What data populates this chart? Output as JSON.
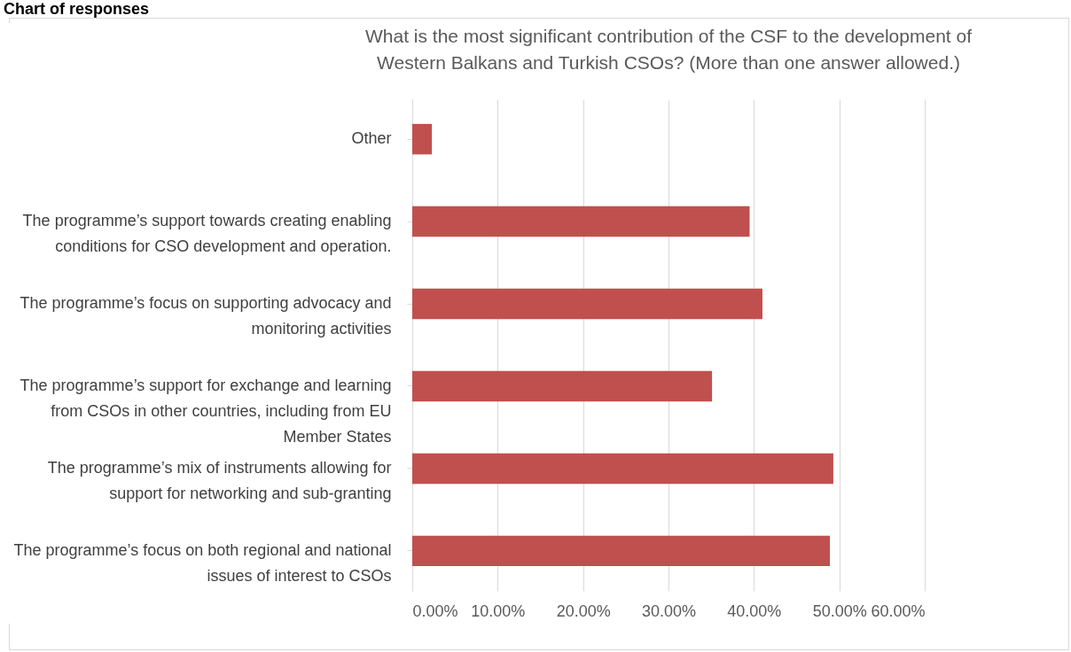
{
  "chart_data": {
    "type": "bar",
    "orientation": "horizontal",
    "title": "What is the most significant contribution of the CSF to the development of Western Balkans and Turkish CSOs? (More than one answer allowed.)",
    "annotations": [
      "Chart of responses"
    ],
    "categories": [
      "Other",
      "The programme’s support towards creating enabling conditions for CSO development and operation.",
      "The programme’s focus on supporting advocacy and monitoring activities",
      "The programme’s support for exchange and learning from CSOs in other countries, including from EU Member States",
      "The programme’s mix of instruments allowing for support for networking and sub-granting",
      "The programme’s focus on both regional and national issues of interest to CSOs"
    ],
    "values": [
      2.3,
      39.5,
      41,
      35.1,
      49.3,
      48.9
    ],
    "color": "#c0504d",
    "xlim": [
      0,
      60
    ],
    "xticks": [
      {
        "value": 0,
        "label": "0.00%"
      },
      {
        "value": 10,
        "label": "10.00%"
      },
      {
        "value": 20,
        "label": "20.00%"
      },
      {
        "value": 30,
        "label": "30.00%"
      },
      {
        "value": 40,
        "label": "40.00%"
      },
      {
        "value": 50,
        "label": "50.00%"
      },
      {
        "value": 60,
        "label": "60.00%"
      }
    ],
    "grid": "x"
  }
}
